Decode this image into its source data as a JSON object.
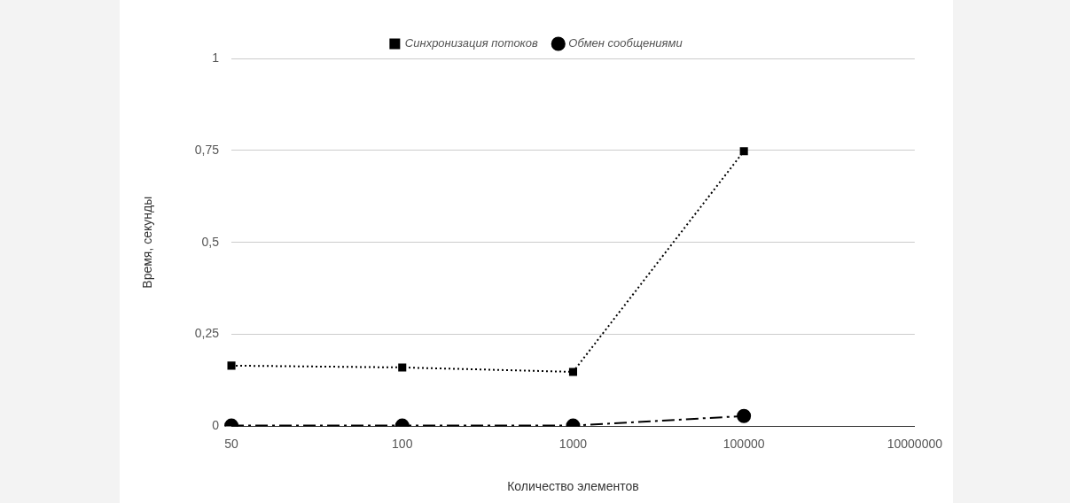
{
  "chart_data": {
    "type": "line",
    "xlabel": "Количество элементов",
    "ylabel": "Время, секунды",
    "categories": [
      "50",
      "100",
      "1000",
      "100000",
      "10000000"
    ],
    "series": [
      {
        "name": "Синхронизация потоков",
        "color": "#000000",
        "marker": "square",
        "line_style": "dotted",
        "values": [
          0.165,
          0.16,
          0.148,
          0.748,
          null
        ]
      },
      {
        "name": "Обмен сообщениями",
        "color": "#000000",
        "marker": "circle",
        "line_style": "dashdot",
        "values": [
          0.002,
          0.002,
          0.002,
          0.028,
          null
        ]
      }
    ],
    "ylim": [
      0,
      1
    ],
    "yticks": [
      0,
      {
        "value": 0.25,
        "label": "0,25"
      },
      {
        "value": 0.5,
        "label": "0,5"
      },
      {
        "value": 0.75,
        "label": "0,75"
      },
      1
    ],
    "grid": "y",
    "legend": "top"
  }
}
